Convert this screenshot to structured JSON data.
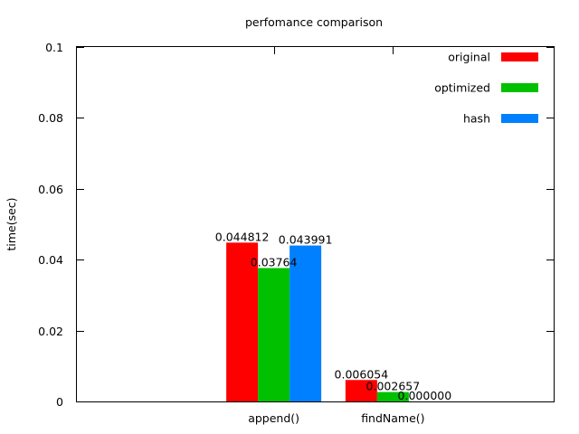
{
  "chart_data": {
    "type": "bar",
    "title": "perfomance comparison",
    "xlabel": "",
    "ylabel": "time(sec)",
    "ylim": [
      0,
      0.1
    ],
    "yticks": [
      "0",
      "0.02",
      "0.04",
      "0.06",
      "0.08",
      "0.1"
    ],
    "ytick_values": [
      0,
      0.02,
      0.04,
      0.06,
      0.08,
      0.1
    ],
    "categories": [
      "append()",
      "findName()"
    ],
    "grid": false,
    "legend": "top-right",
    "series": [
      {
        "name": "original",
        "color": "#ff0000",
        "values": [
          0.044812,
          0.006054
        ],
        "labels": [
          "0.044812",
          "0.006054"
        ]
      },
      {
        "name": "optimized",
        "color": "#00c000",
        "values": [
          0.03764,
          0.002657
        ],
        "labels": [
          "0.03764",
          "0.002657"
        ]
      },
      {
        "name": "hash",
        "color": "#0080ff",
        "values": [
          0.043991,
          0.0
        ],
        "labels": [
          "0.043991",
          "0.000000"
        ]
      }
    ]
  }
}
